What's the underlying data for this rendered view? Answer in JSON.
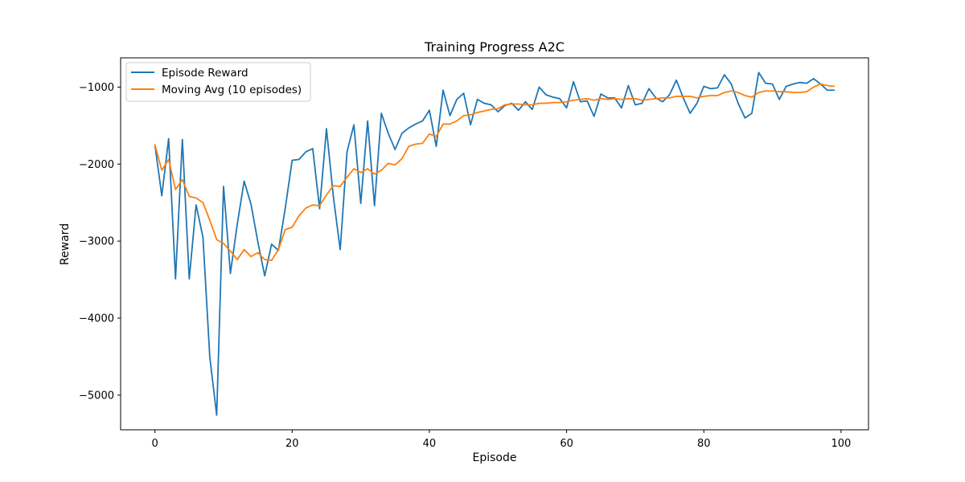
{
  "chart_data": {
    "type": "line",
    "title": "Training Progress A2C",
    "xlabel": "Episode",
    "ylabel": "Reward",
    "xlim": [
      -5,
      104
    ],
    "ylim": [
      -5450,
      -620
    ],
    "xticks": [
      0,
      20,
      40,
      60,
      80,
      100
    ],
    "yticks": [
      -5000,
      -4000,
      -3000,
      -2000,
      -1000
    ],
    "ytick_labels": [
      "−5000",
      "−4000",
      "−3000",
      "−2000",
      "−1000"
    ],
    "grid": false,
    "legend_position": "top-left",
    "x": [
      0,
      1,
      2,
      3,
      4,
      5,
      6,
      7,
      8,
      9,
      10,
      11,
      12,
      13,
      14,
      15,
      16,
      17,
      18,
      19,
      20,
      21,
      22,
      23,
      24,
      25,
      26,
      27,
      28,
      29,
      30,
      31,
      32,
      33,
      34,
      35,
      36,
      37,
      38,
      39,
      40,
      41,
      42,
      43,
      44,
      45,
      46,
      47,
      48,
      49,
      50,
      51,
      52,
      53,
      54,
      55,
      56,
      57,
      58,
      59,
      60,
      61,
      62,
      63,
      64,
      65,
      66,
      67,
      68,
      69,
      70,
      71,
      72,
      73,
      74,
      75,
      76,
      77,
      78,
      79,
      80,
      81,
      82,
      83,
      84,
      85,
      86,
      87,
      88,
      89,
      90,
      91,
      92,
      93,
      94,
      95,
      96,
      97,
      98,
      99
    ],
    "series": [
      {
        "name": "Episode Reward",
        "color": "#1f77b4",
        "values": [
          -1750,
          -2410,
          -1670,
          -3490,
          -1680,
          -3490,
          -2530,
          -2950,
          -4510,
          -5260,
          -2290,
          -3420,
          -2780,
          -2220,
          -2520,
          -3010,
          -3450,
          -3040,
          -3120,
          -2570,
          -1950,
          -1940,
          -1840,
          -1800,
          -2580,
          -1540,
          -2420,
          -3110,
          -1840,
          -1490,
          -2510,
          -1440,
          -2540,
          -1340,
          -1600,
          -1810,
          -1600,
          -1530,
          -1480,
          -1440,
          -1300,
          -1770,
          -1040,
          -1370,
          -1160,
          -1080,
          -1490,
          -1160,
          -1210,
          -1230,
          -1320,
          -1240,
          -1210,
          -1300,
          -1190,
          -1290,
          -1000,
          -1100,
          -1130,
          -1150,
          -1270,
          -930,
          -1190,
          -1180,
          -1380,
          -1090,
          -1140,
          -1140,
          -1270,
          -980,
          -1230,
          -1210,
          -1020,
          -1140,
          -1190,
          -1100,
          -910,
          -1140,
          -1340,
          -1210,
          -990,
          -1020,
          -1010,
          -840,
          -960,
          -1210,
          -1400,
          -1340,
          -810,
          -950,
          -960,
          -1160,
          -990,
          -960,
          -940,
          -950,
          -890,
          -960,
          -1040,
          -1040
        ]
      },
      {
        "name": "Moving Avg (10 episodes)",
        "color": "#ff7f0e",
        "values": [
          -1750,
          -2080,
          -1940,
          -2330,
          -2200,
          -2420,
          -2440,
          -2500,
          -2730,
          -2980,
          -3030,
          -3130,
          -3240,
          -3110,
          -3200,
          -3150,
          -3240,
          -3250,
          -3110,
          -2850,
          -2820,
          -2670,
          -2570,
          -2530,
          -2540,
          -2400,
          -2280,
          -2290,
          -2170,
          -2060,
          -2110,
          -2060,
          -2130,
          -2080,
          -1990,
          -2010,
          -1930,
          -1770,
          -1740,
          -1730,
          -1610,
          -1640,
          -1480,
          -1480,
          -1440,
          -1370,
          -1360,
          -1330,
          -1310,
          -1290,
          -1280,
          -1230,
          -1220,
          -1220,
          -1230,
          -1230,
          -1210,
          -1210,
          -1200,
          -1200,
          -1190,
          -1170,
          -1160,
          -1150,
          -1170,
          -1150,
          -1160,
          -1150,
          -1160,
          -1150,
          -1150,
          -1170,
          -1160,
          -1150,
          -1140,
          -1140,
          -1120,
          -1120,
          -1120,
          -1140,
          -1120,
          -1110,
          -1110,
          -1070,
          -1050,
          -1070,
          -1110,
          -1130,
          -1070,
          -1050,
          -1050,
          -1060,
          -1060,
          -1070,
          -1070,
          -1060,
          -1000,
          -960,
          -980,
          -990
        ]
      }
    ]
  }
}
